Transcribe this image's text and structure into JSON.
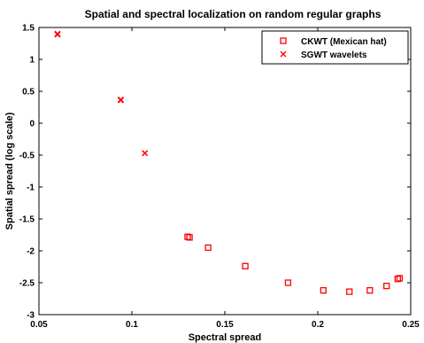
{
  "chart_data": {
    "type": "scatter",
    "title": "Spatial and spectral localization on random regular graphs",
    "xlabel": "Spectral spread",
    "ylabel": "Spatial spread (log scale)",
    "xlim": [
      0.05,
      0.25
    ],
    "ylim": [
      -3,
      1.5
    ],
    "xticks": [
      {
        "value": 0.05,
        "label": "0.05"
      },
      {
        "value": 0.1,
        "label": "0.1"
      },
      {
        "value": 0.15,
        "label": "0.15"
      },
      {
        "value": 0.2,
        "label": "0.2"
      },
      {
        "value": 0.25,
        "label": "0.25"
      }
    ],
    "yticks": [
      {
        "value": 1.5,
        "label": "1.5"
      },
      {
        "value": 1,
        "label": "1"
      },
      {
        "value": 0.5,
        "label": "0.5"
      },
      {
        "value": 0,
        "label": "0"
      },
      {
        "value": -0.5,
        "label": "-0.5"
      },
      {
        "value": -1,
        "label": "-1"
      },
      {
        "value": -1.5,
        "label": "-1.5"
      },
      {
        "value": -2,
        "label": "-2"
      },
      {
        "value": -2.5,
        "label": "-2.5"
      },
      {
        "value": -3,
        "label": "-3"
      }
    ],
    "legend_position": "top-right",
    "grid": false,
    "series": [
      {
        "name": "CKWT (Mexican hat)",
        "marker": "square",
        "color": "#ff0000",
        "points": [
          {
            "x": 0.13,
            "y": -1.78
          },
          {
            "x": 0.131,
            "y": -1.79
          },
          {
            "x": 0.141,
            "y": -1.95
          },
          {
            "x": 0.161,
            "y": -2.24
          },
          {
            "x": 0.184,
            "y": -2.5
          },
          {
            "x": 0.203,
            "y": -2.62
          },
          {
            "x": 0.217,
            "y": -2.64
          },
          {
            "x": 0.228,
            "y": -2.62
          },
          {
            "x": 0.237,
            "y": -2.55
          },
          {
            "x": 0.243,
            "y": -2.44
          },
          {
            "x": 0.244,
            "y": -2.43
          }
        ]
      },
      {
        "name": "SGWT wavelets",
        "marker": "x",
        "color": "#ff0000",
        "points": [
          {
            "x": 0.06,
            "y": 1.4
          },
          {
            "x": 0.06,
            "y": 1.39
          },
          {
            "x": 0.094,
            "y": 0.36
          },
          {
            "x": 0.094,
            "y": 0.37
          },
          {
            "x": 0.107,
            "y": -0.47
          }
        ]
      }
    ]
  }
}
